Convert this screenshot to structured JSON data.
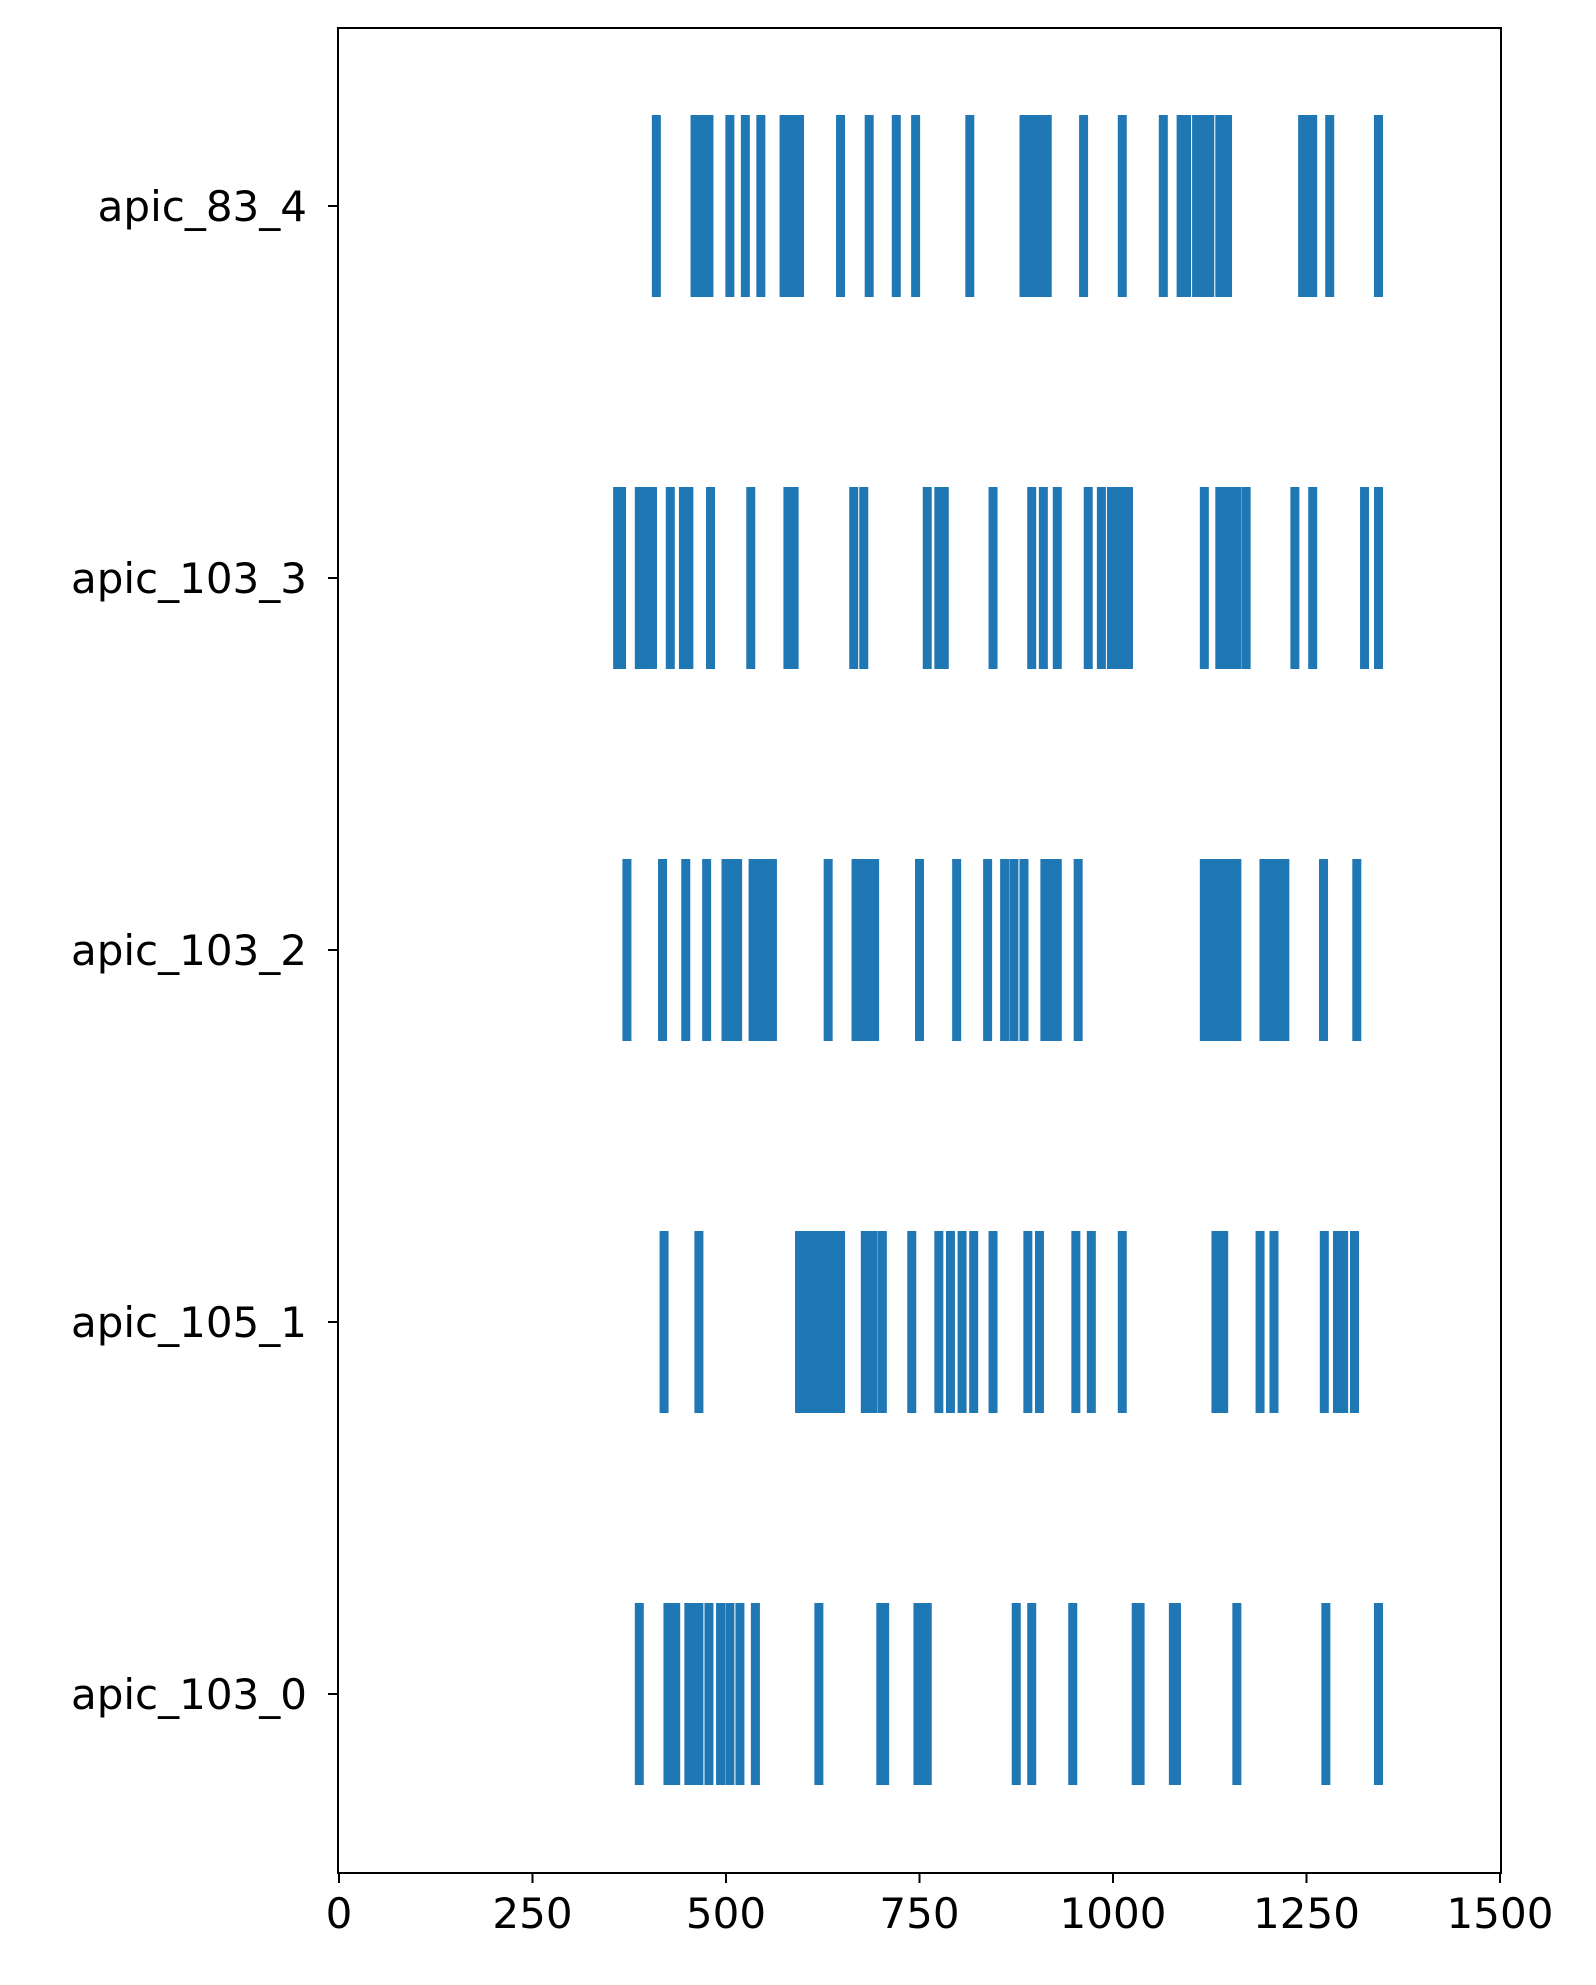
{
  "chart_data": {
    "type": "eventplot",
    "title": "",
    "xlabel": "",
    "ylabel": "",
    "xlim": [
      0,
      1500
    ],
    "xticks": [
      0,
      250,
      500,
      750,
      1000,
      1250,
      1500
    ],
    "xtick_labels": [
      "0",
      "250",
      "500",
      "750",
      "1000",
      "1250",
      "1500"
    ],
    "grid": false,
    "legend": "none",
    "color": "#1f77b4",
    "rows": [
      {
        "label": "apic_83_4",
        "events": [
          410,
          460,
          468,
          478,
          505,
          525,
          545,
          575,
          580,
          585,
          595,
          648,
          685,
          720,
          745,
          815,
          885,
          895,
          900,
          905,
          915,
          962,
          1012,
          1065,
          1088,
          1095,
          1108,
          1118,
          1125,
          1138,
          1143,
          1148,
          1245,
          1252,
          1258,
          1280,
          1343
        ]
      },
      {
        "label": "apic_103_3",
        "events": [
          360,
          365,
          388,
          395,
          400,
          405,
          428,
          445,
          452,
          480,
          532,
          580,
          588,
          665,
          678,
          760,
          775,
          782,
          845,
          895,
          910,
          928,
          968,
          985,
          998,
          1005,
          1010,
          1015,
          1020,
          1118,
          1138,
          1148,
          1155,
          1160,
          1172,
          1235,
          1258,
          1325,
          1343
        ]
      },
      {
        "label": "apic_103_2",
        "events": [
          372,
          418,
          448,
          475,
          500,
          508,
          515,
          535,
          542,
          552,
          560,
          632,
          668,
          678,
          685,
          692,
          750,
          798,
          838,
          860,
          872,
          885,
          912,
          920,
          928,
          955,
          1118,
          1128,
          1135,
          1140,
          1145,
          1152,
          1160,
          1195,
          1200,
          1210,
          1215,
          1222,
          1272,
          1315
        ]
      },
      {
        "label": "apic_105_1",
        "events": [
          420,
          465,
          595,
          600,
          605,
          610,
          615,
          620,
          625,
          635,
          640,
          648,
          680,
          690,
          702,
          740,
          775,
          790,
          805,
          820,
          845,
          890,
          905,
          952,
          972,
          1012,
          1133,
          1138,
          1143,
          1190,
          1208,
          1273,
          1290,
          1298,
          1312
        ]
      },
      {
        "label": "apic_103_0",
        "events": [
          388,
          425,
          430,
          435,
          452,
          460,
          465,
          478,
          493,
          505,
          518,
          538,
          620,
          700,
          705,
          748,
          755,
          760,
          875,
          895,
          948,
          1030,
          1035,
          1078,
          1082,
          1160,
          1275,
          1343
        ]
      }
    ]
  }
}
